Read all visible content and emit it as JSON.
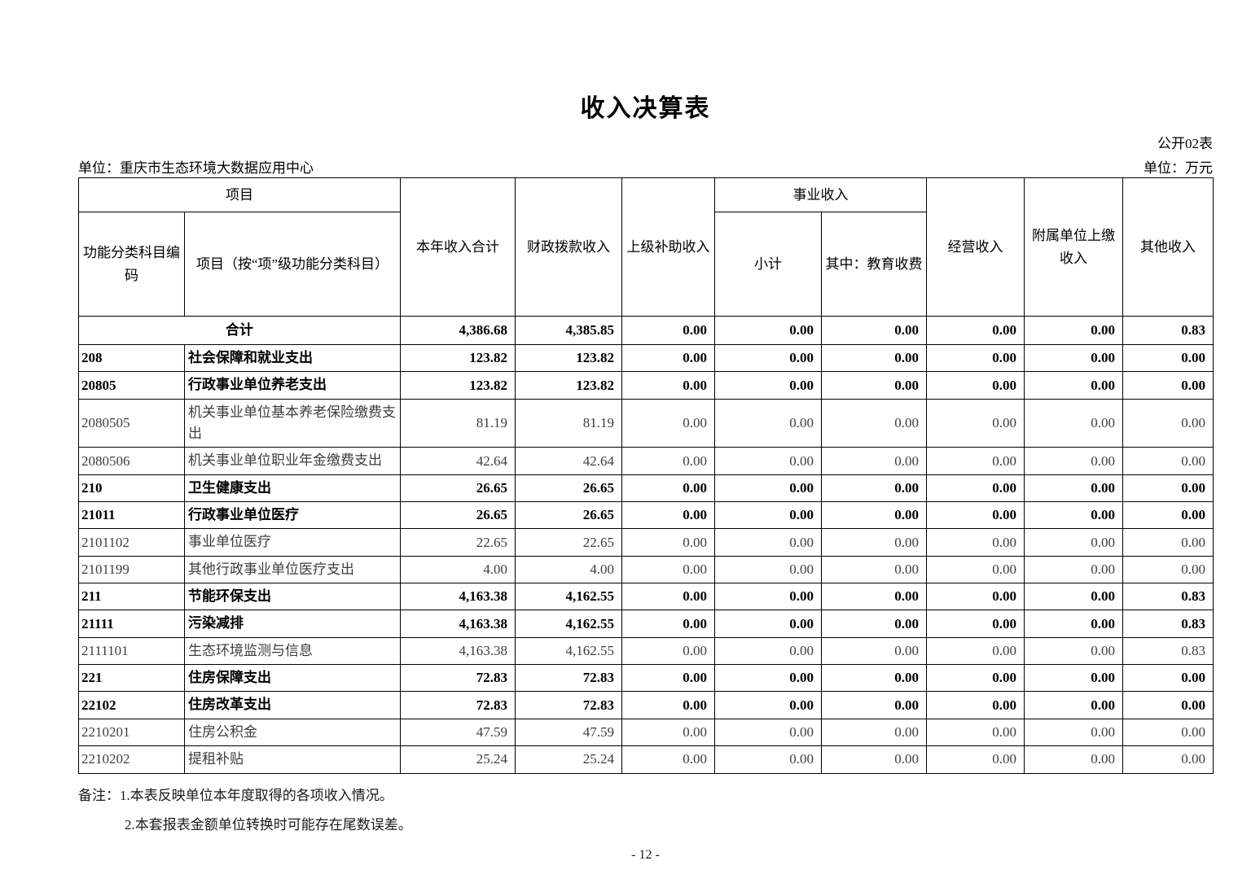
{
  "page": {
    "title": "收入决算表",
    "form_label": "公开02表",
    "unit_label": "单位：重庆市生态环境大数据应用中心",
    "currency_label": "单位：万元",
    "page_number": "- 12 -"
  },
  "table": {
    "header": {
      "project_group": "项目",
      "code": "功能分类科目编码",
      "project": "项目（按“项”级功能分类科目）",
      "total_income": "本年收入合计",
      "fiscal_income": "财政拨款收入",
      "superior_subsidy": "上级补助收入",
      "business_income_group": "事业收入",
      "subtotal": "小计",
      "education_fee": "其中：教育收费",
      "operating_income": "经营收入",
      "affiliated_income": "附属单位上缴收入",
      "other_income": "其他收入"
    },
    "rows": [
      {
        "code": "",
        "project": "合计",
        "merged": true,
        "bold": true,
        "values": [
          "4,386.68",
          "4,385.85",
          "0.00",
          "0.00",
          "0.00",
          "0.00",
          "0.00",
          "0.83"
        ]
      },
      {
        "code": "208",
        "project": "社会保障和就业支出",
        "bold": true,
        "values": [
          "123.82",
          "123.82",
          "0.00",
          "0.00",
          "0.00",
          "0.00",
          "0.00",
          "0.00"
        ]
      },
      {
        "code": "20805",
        "project": "行政事业单位养老支出",
        "bold": true,
        "values": [
          "123.82",
          "123.82",
          "0.00",
          "0.00",
          "0.00",
          "0.00",
          "0.00",
          "0.00"
        ]
      },
      {
        "code": "2080505",
        "project": "机关事业单位基本养老保险缴费支出",
        "bold": false,
        "values": [
          "81.19",
          "81.19",
          "0.00",
          "0.00",
          "0.00",
          "0.00",
          "0.00",
          "0.00"
        ]
      },
      {
        "code": "2080506",
        "project": "机关事业单位职业年金缴费支出",
        "bold": false,
        "values": [
          "42.64",
          "42.64",
          "0.00",
          "0.00",
          "0.00",
          "0.00",
          "0.00",
          "0.00"
        ]
      },
      {
        "code": "210",
        "project": "卫生健康支出",
        "bold": true,
        "values": [
          "26.65",
          "26.65",
          "0.00",
          "0.00",
          "0.00",
          "0.00",
          "0.00",
          "0.00"
        ]
      },
      {
        "code": "21011",
        "project": "行政事业单位医疗",
        "bold": true,
        "values": [
          "26.65",
          "26.65",
          "0.00",
          "0.00",
          "0.00",
          "0.00",
          "0.00",
          "0.00"
        ]
      },
      {
        "code": "2101102",
        "project": "事业单位医疗",
        "bold": false,
        "values": [
          "22.65",
          "22.65",
          "0.00",
          "0.00",
          "0.00",
          "0.00",
          "0.00",
          "0.00"
        ]
      },
      {
        "code": "2101199",
        "project": "其他行政事业单位医疗支出",
        "bold": false,
        "values": [
          "4.00",
          "4.00",
          "0.00",
          "0.00",
          "0.00",
          "0.00",
          "0.00",
          "0.00"
        ]
      },
      {
        "code": "211",
        "project": "节能环保支出",
        "bold": true,
        "values": [
          "4,163.38",
          "4,162.55",
          "0.00",
          "0.00",
          "0.00",
          "0.00",
          "0.00",
          "0.83"
        ]
      },
      {
        "code": "21111",
        "project": "污染减排",
        "bold": true,
        "values": [
          "4,163.38",
          "4,162.55",
          "0.00",
          "0.00",
          "0.00",
          "0.00",
          "0.00",
          "0.83"
        ]
      },
      {
        "code": "2111101",
        "project": "生态环境监测与信息",
        "bold": false,
        "values": [
          "4,163.38",
          "4,162.55",
          "0.00",
          "0.00",
          "0.00",
          "0.00",
          "0.00",
          "0.83"
        ]
      },
      {
        "code": "221",
        "project": "住房保障支出",
        "bold": true,
        "values": [
          "72.83",
          "72.83",
          "0.00",
          "0.00",
          "0.00",
          "0.00",
          "0.00",
          "0.00"
        ]
      },
      {
        "code": "22102",
        "project": "住房改革支出",
        "bold": true,
        "values": [
          "72.83",
          "72.83",
          "0.00",
          "0.00",
          "0.00",
          "0.00",
          "0.00",
          "0.00"
        ]
      },
      {
        "code": "2210201",
        "project": "住房公积金",
        "bold": false,
        "values": [
          "47.59",
          "47.59",
          "0.00",
          "0.00",
          "0.00",
          "0.00",
          "0.00",
          "0.00"
        ]
      },
      {
        "code": "2210202",
        "project": "提租补贴",
        "bold": false,
        "values": [
          "25.24",
          "25.24",
          "0.00",
          "0.00",
          "0.00",
          "0.00",
          "0.00",
          "0.00"
        ]
      }
    ]
  },
  "notes": {
    "prefix": "备注：",
    "line1": "1.本表反映单位本年度取得的各项收入情况。",
    "line2": "2.本套报表金额单位转换时可能存在尾数误差。"
  }
}
